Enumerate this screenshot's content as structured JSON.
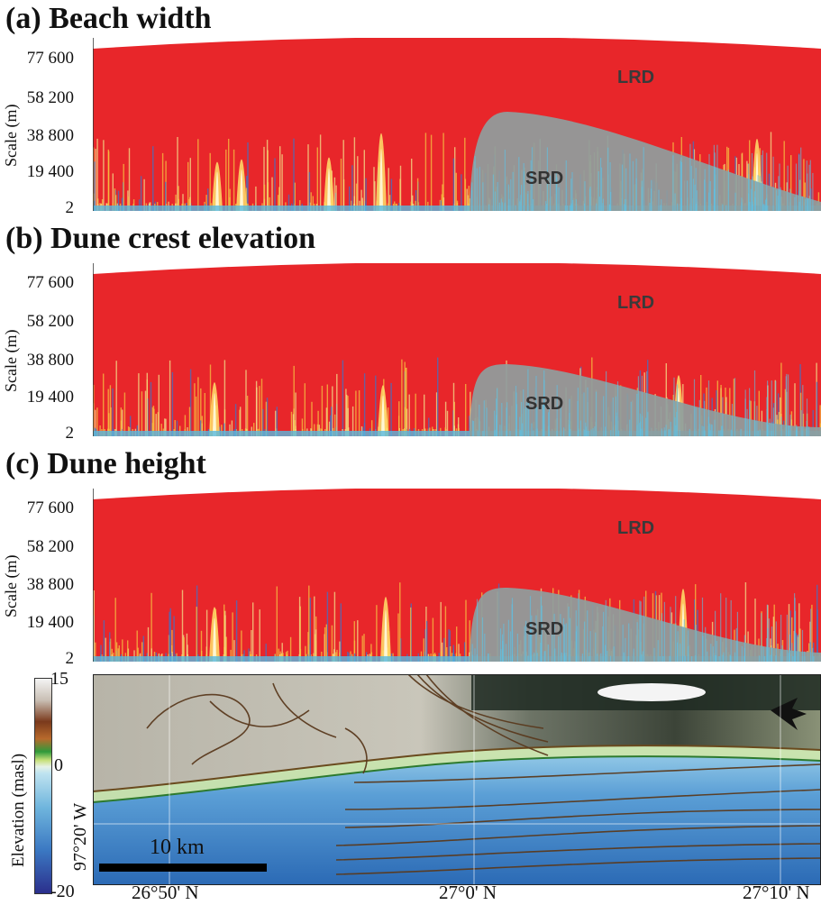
{
  "panels": [
    {
      "label": "(a) Beach width"
    },
    {
      "label": "(b) Dune crest elevation"
    },
    {
      "label": "(c) Dune height"
    }
  ],
  "scale_axis": {
    "title": "Scale (m)",
    "ticks": [
      "77 600",
      "58 200",
      "38 800",
      "19 400",
      "2"
    ]
  },
  "regions": {
    "long": "LRD",
    "short": "SRD"
  },
  "map": {
    "colorbar_title": "Elevation (masl)",
    "colorbar_ticks": [
      "15",
      "0",
      "-20"
    ],
    "lon_label": "97°20' W",
    "scale_bar": "10 km",
    "lat_ticks": [
      "26°50' N",
      "27°0' N",
      "27°10' N"
    ]
  },
  "colors": {
    "lrd": "#e8262a",
    "srd": "#8e9e9e",
    "ocean": "#4d8fcf",
    "ocean_deep": "#2a6fb8",
    "contour": "#5a3a1e"
  },
  "chart_data": {
    "type": "heatmap",
    "y_ticks": [
      77600,
      58200,
      38800,
      19400,
      2
    ],
    "ylabel": "Scale (m)",
    "series": [
      {
        "name": "(a) Beach width"
      },
      {
        "name": "(b) Dune crest elevation"
      },
      {
        "name": "(c) Dune height"
      }
    ]
  }
}
